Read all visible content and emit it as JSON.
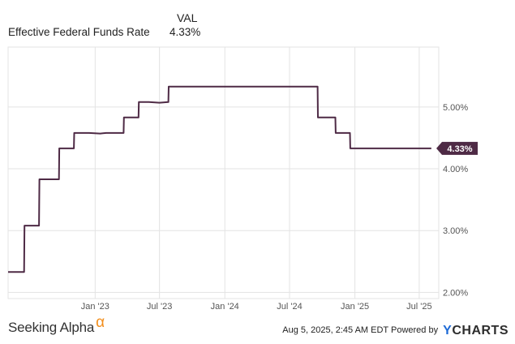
{
  "legend": {
    "column_header": "VAL",
    "series_label": "Effective Federal Funds Rate",
    "series_value": "4.33%"
  },
  "colors": {
    "series": "#4e2a45",
    "grid": "#e3e3e3",
    "alpha_accent": "#f28e1c",
    "ycharts_y": "#1f6bd6"
  },
  "footer": {
    "brand_left": "Seeking Alpha",
    "brand_left_symbol": "α",
    "timestamp": "Aug 5, 2025, 2:45 AM EDT",
    "powered_by": "Powered by",
    "brand_right_y": "Y",
    "brand_right_rest": "CHARTS"
  },
  "chart_data": {
    "type": "line",
    "series": [
      {
        "name": "Effective Federal Funds Rate",
        "x": [
          "2022-05-01",
          "2022-06-15",
          "2022-06-16",
          "2022-07-27",
          "2022-07-28",
          "2022-09-21",
          "2022-09-22",
          "2022-11-02",
          "2022-11-03",
          "2022-12-14",
          "2022-12-15",
          "2023-01-15",
          "2023-02-01",
          "2023-02-15",
          "2023-03-22",
          "2023-03-23",
          "2023-04-20",
          "2023-05-03",
          "2023-05-04",
          "2023-06-01",
          "2023-07-01",
          "2023-07-26",
          "2023-07-27",
          "2024-09-18",
          "2024-09-19",
          "2024-11-07",
          "2024-11-08",
          "2024-12-18",
          "2024-12-19",
          "2025-08-04"
        ],
        "y": [
          2.33,
          2.33,
          3.08,
          3.08,
          3.83,
          3.83,
          4.33,
          4.33,
          4.58,
          4.58,
          4.58,
          4.57,
          4.58,
          4.58,
          4.58,
          4.83,
          4.83,
          4.83,
          5.08,
          5.08,
          5.07,
          5.08,
          5.33,
          5.33,
          4.83,
          4.83,
          4.58,
          4.58,
          4.33,
          4.33
        ]
      }
    ],
    "current_value_label": "4.33%",
    "x_ticks": [
      "Jan '23",
      "Jul '23",
      "Jan '24",
      "Jul '24",
      "Jan '25",
      "Jul '25"
    ],
    "y_ticks": [
      "2.00%",
      "3.00%",
      "4.00%",
      "5.00%"
    ],
    "ylim": [
      1.9,
      5.97
    ],
    "xlim": [
      "2022-05-01",
      "2025-08-25"
    ],
    "grid": true,
    "y_axis_side": "right"
  }
}
